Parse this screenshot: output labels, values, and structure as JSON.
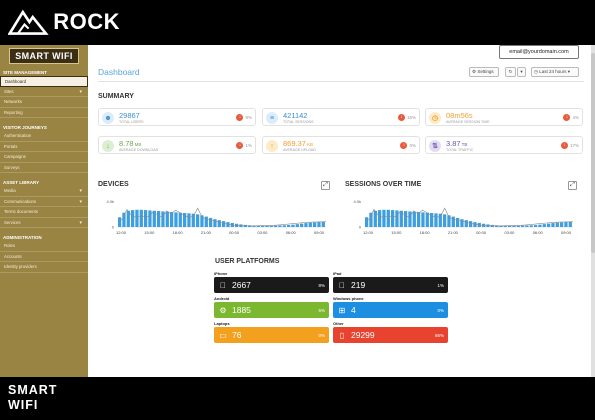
{
  "topbar": {
    "brand": "ROCK"
  },
  "sidebar": {
    "brand": "SMART WIFI",
    "sections": [
      {
        "title": "SITE MANAGEMENT",
        "items": [
          {
            "label": "Dashboard",
            "active": true,
            "chevron": false
          },
          {
            "label": "Sites",
            "active": false,
            "chevron": true
          },
          {
            "label": "Networks",
            "active": false,
            "chevron": false
          },
          {
            "label": "Reporting",
            "active": false,
            "chevron": false
          }
        ]
      },
      {
        "title": "VISITOR JOURNEYS",
        "items": [
          {
            "label": "Authentication",
            "active": false,
            "chevron": false
          },
          {
            "label": "Portals",
            "active": false,
            "chevron": false
          },
          {
            "label": "Campaigns",
            "active": false,
            "chevron": false
          },
          {
            "label": "Surveys",
            "active": false,
            "chevron": false
          }
        ]
      },
      {
        "title": "ASSET LIBRARY",
        "items": [
          {
            "label": "Media",
            "active": false,
            "chevron": true
          },
          {
            "label": "Communications",
            "active": false,
            "chevron": true
          },
          {
            "label": "Terms documents",
            "active": false,
            "chevron": false
          },
          {
            "label": "Services",
            "active": false,
            "chevron": true
          }
        ]
      },
      {
        "title": "ADMINISTRATION",
        "items": [
          {
            "label": "Roles",
            "active": false,
            "chevron": false
          },
          {
            "label": "Accounts",
            "active": false,
            "chevron": false
          },
          {
            "label": "Identity providers",
            "active": false,
            "chevron": false
          }
        ]
      }
    ]
  },
  "header": {
    "email": "email@yourdomain.com",
    "title": "Dashboard",
    "settings_label": "Settings",
    "range_label": "Last 24 hours"
  },
  "summary": {
    "title": "SUMMARY",
    "cards": [
      {
        "value": "29867",
        "unit": "",
        "label": "TOTAL USERS",
        "change": "8%",
        "color": "#3a8fd4",
        "bg": "#dcecf8",
        "icon": "users-icon",
        "glyph": "☻"
      },
      {
        "value": "421142",
        "unit": "",
        "label": "TOTAL SESSIONS",
        "change": "15%",
        "color": "#3a8fd4",
        "bg": "#dcecf8",
        "icon": "sessions-chart-icon",
        "glyph": "≡"
      },
      {
        "value": "08m56s",
        "unit": "",
        "label": "AVERAGE SESSION TIME",
        "change": "4%",
        "color": "#f0a030",
        "bg": "#fdebc8",
        "icon": "clock-icon",
        "glyph": "◷"
      },
      {
        "value": "8.78",
        "unit": "MB",
        "label": "AVERAGE DOWNLOAD",
        "change": "1%",
        "color": "#6aa84f",
        "bg": "#dcefd2",
        "icon": "download-icon",
        "glyph": "↓"
      },
      {
        "value": "869.37",
        "unit": "KB",
        "label": "AVERAGE UPLOAD",
        "change": "0%",
        "color": "#f0a030",
        "bg": "#fdebc8",
        "icon": "upload-icon",
        "glyph": "↑"
      },
      {
        "value": "3.87",
        "unit": "TB",
        "label": "TOTAL TRAFFIC",
        "change": "17%",
        "color": "#6a55b0",
        "bg": "#e3dcf3",
        "icon": "traffic-icon",
        "glyph": "⇅"
      }
    ]
  },
  "devices": {
    "title": "DEVICES"
  },
  "sessions_over_time": {
    "title": "SESSIONS OVER TIME"
  },
  "chart_data": [
    {
      "type": "area",
      "title": "DEVICES",
      "y_ticks": [
        "4.0k",
        "0"
      ],
      "ylim": [
        0,
        4000
      ],
      "x_ticks": [
        "12:00",
        "15:00",
        "18:00",
        "21:00",
        "00:00",
        "03:00",
        "06:00",
        "09:00"
      ],
      "bars": [
        1500,
        2200,
        2500,
        2600,
        2650,
        2650,
        2600,
        2550,
        2500,
        2450,
        2400,
        2350,
        2300,
        2250,
        2200,
        2150,
        2100,
        2050,
        1950,
        1800,
        1600,
        1400,
        1200,
        1050,
        900,
        750,
        620,
        500,
        400,
        320,
        260,
        220,
        200,
        190,
        190,
        200,
        210,
        230,
        260,
        300,
        360,
        440,
        520,
        600,
        660,
        700,
        760,
        800
      ],
      "line": [
        800,
        1200,
        2700,
        1800,
        1500,
        1700,
        1550,
        1600,
        2400,
        1800,
        1500,
        2500,
        2000,
        2600,
        2200,
        1800,
        1500,
        1600,
        2900,
        1500,
        1200,
        1000,
        900,
        700,
        550,
        400,
        300,
        250,
        200,
        180,
        170,
        180,
        200,
        220,
        240,
        260,
        300,
        350,
        420,
        500,
        560,
        620,
        680,
        720,
        760,
        780,
        800,
        820
      ]
    },
    {
      "type": "area",
      "title": "SESSIONS OVER TIME",
      "y_ticks": [
        "4.0k",
        "0"
      ],
      "ylim": [
        0,
        4000
      ],
      "x_ticks": [
        "12:00",
        "15:00",
        "18:00",
        "21:00",
        "00:00",
        "03:00",
        "06:00",
        "09:00"
      ],
      "bars": [
        1500,
        2200,
        2500,
        2600,
        2650,
        2650,
        2600,
        2550,
        2500,
        2450,
        2400,
        2350,
        2300,
        2250,
        2200,
        2150,
        2100,
        2050,
        1950,
        1800,
        1600,
        1400,
        1200,
        1050,
        900,
        750,
        620,
        500,
        400,
        320,
        260,
        220,
        200,
        190,
        190,
        200,
        210,
        230,
        260,
        300,
        360,
        440,
        520,
        600,
        660,
        700,
        760,
        800
      ],
      "line": [
        800,
        1200,
        2700,
        1800,
        1500,
        1700,
        1550,
        1600,
        2400,
        1800,
        1500,
        2500,
        2000,
        2600,
        2200,
        1800,
        1500,
        1600,
        2900,
        1500,
        1200,
        1000,
        900,
        700,
        550,
        400,
        300,
        250,
        200,
        180,
        170,
        180,
        200,
        220,
        240,
        260,
        300,
        350,
        420,
        500,
        560,
        620,
        680,
        720,
        760,
        780,
        800,
        820
      ]
    }
  ],
  "platforms": {
    "title": "USER PLATFORMS",
    "items": [
      {
        "name": "iPhone",
        "count": "2667",
        "pct": "8%",
        "color": "#1a1a1a",
        "icon": "apple-icon",
        "glyph": ""
      },
      {
        "name": "iPad",
        "count": "219",
        "pct": "1%",
        "color": "#1a1a1a",
        "icon": "apple-icon",
        "glyph": ""
      },
      {
        "name": "Android",
        "count": "1885",
        "pct": "5%",
        "color": "#7cb82f",
        "icon": "android-icon",
        "glyph": "⚙"
      },
      {
        "name": "Windows phone",
        "count": "4",
        "pct": "0%",
        "color": "#1e8fe0",
        "icon": "windows-icon",
        "glyph": "⊞"
      },
      {
        "name": "Laptops",
        "count": "76",
        "pct": "0%",
        "color": "#f2a01e",
        "icon": "laptop-icon",
        "glyph": "▭"
      },
      {
        "name": "Other",
        "count": "29299",
        "pct": "86%",
        "color": "#e8432f",
        "icon": "mobile-icon",
        "glyph": "▯"
      }
    ]
  },
  "footer": {
    "line1": "SMART",
    "line2": "WIFI"
  }
}
